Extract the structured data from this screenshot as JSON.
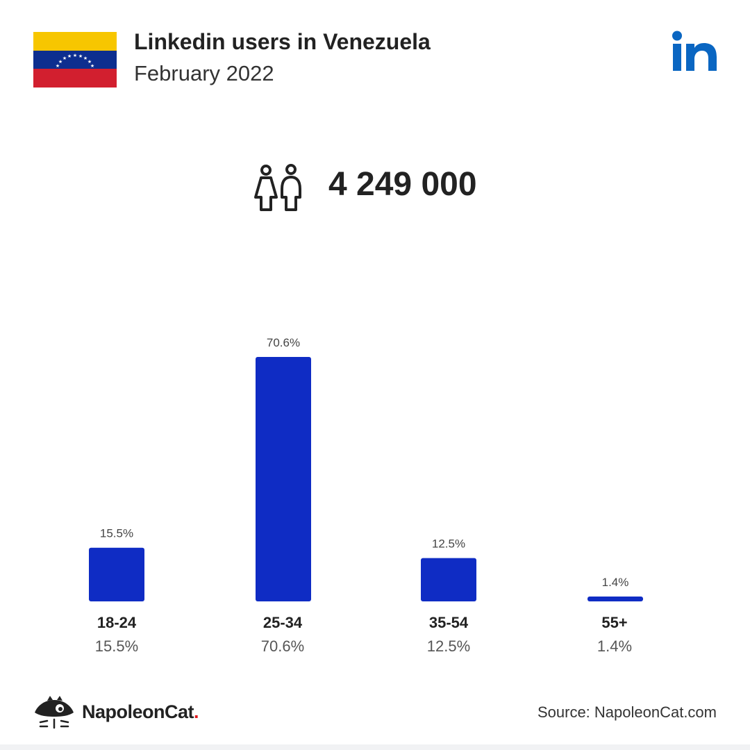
{
  "header": {
    "title": "Linkedin users in Venezuela",
    "subtitle": "February 2022"
  },
  "icons": {
    "flag": "venezuela-flag-icon",
    "brand": "linkedin-logo-icon",
    "users": "users-icon",
    "footer_logo": "napoleoncat-logo-icon"
  },
  "summary": {
    "total_users": "4 249 000"
  },
  "colors": {
    "bar": "#0f2cc4",
    "brand_blue": "#0a66c2",
    "accent_red": "#e0161b"
  },
  "chart_data": {
    "type": "bar",
    "categories": [
      "18-24",
      "25-34",
      "35-54",
      "55+"
    ],
    "values": [
      15.5,
      70.6,
      12.5,
      1.4
    ],
    "bar_labels": [
      "15.5%",
      "70.6%",
      "12.5%",
      "1.4%"
    ],
    "value_labels": [
      "15.5%",
      "70.6%",
      "12.5%",
      "1.4%"
    ],
    "ylim": [
      0,
      70.6
    ],
    "grid": false,
    "unit": "%"
  },
  "footer": {
    "brand_name": "NapoleonCat",
    "brand_dot": ".",
    "source": "Source: NapoleonCat.com"
  }
}
